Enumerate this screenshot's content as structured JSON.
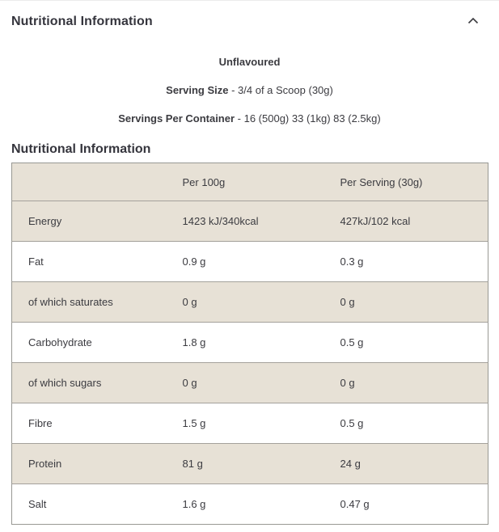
{
  "accordion": {
    "title": "Nutritional Information",
    "chevron_icon": "chevron-up"
  },
  "intro": {
    "flavour": "Unflavoured",
    "serving_size_label": "Serving Size",
    "serving_size_value": "- 3/4 of a Scoop (30g)",
    "servings_label": "Servings Per Container",
    "servings_value": "- 16 (500g) 33 (1kg) 83 (2.5kg)"
  },
  "table": {
    "heading": "Nutritional Information",
    "columns": [
      "",
      "Per 100g",
      "Per Serving (30g)"
    ],
    "rows": [
      {
        "label": "Energy",
        "per100": "1423 kJ/340kcal",
        "perServing": "427kJ/102 kcal"
      },
      {
        "label": "Fat",
        "per100": "0.9 g",
        "perServing": "0.3 g"
      },
      {
        "label": "of which saturates",
        "per100": "0 g",
        "perServing": "0 g"
      },
      {
        "label": "Carbohydrate",
        "per100": "1.8 g",
        "perServing": "0.5 g"
      },
      {
        "label": "of which sugars",
        "per100": "0 g",
        "perServing": "0 g"
      },
      {
        "label": "Fibre",
        "per100": "1.5 g",
        "perServing": "0.5 g"
      },
      {
        "label": "Protein",
        "per100": "81 g",
        "perServing": "24 g"
      },
      {
        "label": "Salt",
        "per100": "1.6 g",
        "perServing": "0.47 g"
      }
    ]
  },
  "colors": {
    "row_beige": "#e7e1d6",
    "row_white": "#ffffff",
    "table_border": "#989893",
    "row_divider": "#a4a19b",
    "text": "#3b3b40"
  }
}
